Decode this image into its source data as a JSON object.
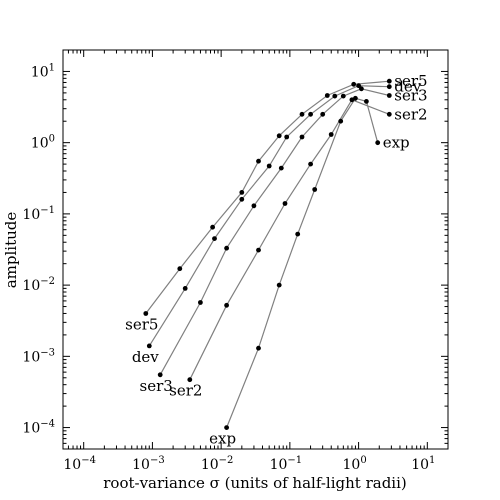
{
  "chart_data": {
    "type": "line",
    "title": "",
    "xlabel": "root-variance σ (units of half-light radii)",
    "ylabel": "amplitude",
    "xscale": "log",
    "yscale": "log",
    "xlim": [
      5e-05,
      20
    ],
    "ylim": [
      5e-05,
      20
    ],
    "grid": false,
    "x_ticks": [
      {
        "value": 0.0001,
        "base": "10",
        "exp": "−4"
      },
      {
        "value": 0.001,
        "base": "10",
        "exp": "−3"
      },
      {
        "value": 0.01,
        "base": "10",
        "exp": "−2"
      },
      {
        "value": 0.1,
        "base": "10",
        "exp": "−1"
      },
      {
        "value": 1,
        "base": "10",
        "exp": "0"
      },
      {
        "value": 10,
        "base": "10",
        "exp": "1"
      }
    ],
    "y_ticks": [
      {
        "value": 0.0001,
        "base": "10",
        "exp": "−4"
      },
      {
        "value": 0.001,
        "base": "10",
        "exp": "−3"
      },
      {
        "value": 0.01,
        "base": "10",
        "exp": "−2"
      },
      {
        "value": 0.1,
        "base": "10",
        "exp": "−1"
      },
      {
        "value": 1,
        "base": "10",
        "exp": "0"
      },
      {
        "value": 10,
        "base": "10",
        "exp": "1"
      }
    ],
    "series": [
      {
        "name": "ser5",
        "x": [
          0.0008,
          0.0025,
          0.0075,
          0.02,
          0.035,
          0.07,
          0.15,
          0.35,
          0.85,
          2.8
        ],
        "y": [
          0.004,
          0.017,
          0.065,
          0.2,
          0.55,
          1.25,
          2.5,
          4.6,
          6.6,
          7.3
        ]
      },
      {
        "name": "dev",
        "x": [
          0.0009,
          0.003,
          0.008,
          0.02,
          0.05,
          0.09,
          0.2,
          0.45,
          1.0,
          2.8
        ],
        "y": [
          0.0014,
          0.009,
          0.045,
          0.16,
          0.47,
          1.2,
          2.5,
          4.5,
          6.3,
          6.1
        ]
      },
      {
        "name": "ser3",
        "x": [
          0.0013,
          0.005,
          0.012,
          0.03,
          0.075,
          0.15,
          0.3,
          0.6,
          1.1,
          2.8
        ],
        "y": [
          0.00055,
          0.0057,
          0.033,
          0.13,
          0.44,
          1.2,
          2.5,
          4.5,
          5.7,
          4.6
        ]
      },
      {
        "name": "ser2",
        "x": [
          0.0035,
          0.012,
          0.035,
          0.085,
          0.2,
          0.4,
          0.8,
          2.8
        ],
        "y": [
          0.00047,
          0.0052,
          0.031,
          0.14,
          0.5,
          1.3,
          4.0,
          2.5
        ]
      },
      {
        "name": "exp",
        "x": [
          0.012,
          0.035,
          0.07,
          0.13,
          0.23,
          0.55,
          0.9,
          1.3,
          1.9
        ],
        "y": [
          0.0001,
          0.0013,
          0.01,
          0.052,
          0.22,
          2.0,
          4.2,
          3.8,
          1.0
        ]
      }
    ]
  }
}
